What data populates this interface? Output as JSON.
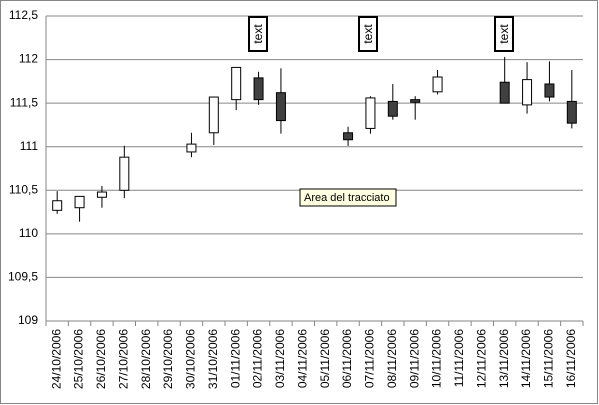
{
  "chart_data": {
    "type": "candlestick",
    "categories": [
      "24/10/2006",
      "25/10/2006",
      "26/10/2006",
      "27/10/2006",
      "28/10/2006",
      "29/10/2006",
      "30/10/2006",
      "31/10/2006",
      "01/11/2006",
      "02/11/2006",
      "03/11/2006",
      "04/11/2006",
      "05/11/2006",
      "06/11/2006",
      "07/11/2006",
      "08/11/2006",
      "09/11/2006",
      "10/11/2006",
      "11/11/2006",
      "12/11/2006",
      "13/11/2006",
      "14/11/2006",
      "15/11/2006",
      "16/11/2006"
    ],
    "open": [
      110.27,
      110.3,
      110.42,
      110.5,
      null,
      null,
      110.94,
      111.16,
      111.54,
      111.79,
      111.62,
      null,
      null,
      111.16,
      111.21,
      111.52,
      111.54,
      111.63,
      null,
      null,
      111.74,
      111.48,
      111.72,
      111.52
    ],
    "high": [
      110.49,
      110.43,
      110.55,
      111.01,
      null,
      null,
      111.16,
      111.57,
      111.91,
      111.86,
      111.9,
      null,
      null,
      111.23,
      111.58,
      111.72,
      111.58,
      111.88,
      null,
      null,
      112.03,
      111.97,
      111.98,
      111.88
    ],
    "low": [
      110.23,
      110.14,
      110.3,
      110.41,
      null,
      null,
      110.88,
      111.02,
      111.42,
      111.48,
      111.15,
      null,
      null,
      111.01,
      111.15,
      111.31,
      111.31,
      111.6,
      null,
      null,
      111.5,
      111.38,
      111.52,
      111.21
    ],
    "close": [
      110.38,
      110.43,
      110.48,
      110.88,
      null,
      null,
      111.03,
      111.57,
      111.91,
      111.54,
      111.3,
      null,
      null,
      111.08,
      111.56,
      111.35,
      111.51,
      111.8,
      null,
      null,
      111.5,
      111.77,
      111.57,
      111.27
    ],
    "up_color": "#ffffff",
    "down_color": "#404040",
    "ylim": [
      109,
      112.5
    ],
    "yticks": [
      109,
      {
        "value": 109.5,
        "label": "109,5"
      },
      110,
      {
        "value": 110.5,
        "label": "110,5"
      },
      111,
      {
        "value": 111.5,
        "label": "111,5"
      },
      112,
      {
        "value": 112.5,
        "label": "112,5"
      }
    ],
    "grid": true,
    "annotations": [
      "text",
      "text",
      "text"
    ],
    "tooltip": "Area del tracciato"
  }
}
